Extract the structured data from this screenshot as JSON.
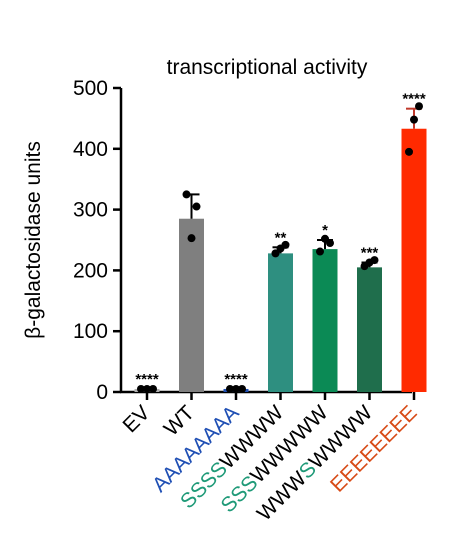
{
  "chart_data": {
    "type": "bar",
    "title": "transcriptional activity",
    "ylabel": "β-galactosidase units",
    "xlabel": "",
    "ylim": [
      0,
      500
    ],
    "yticks": [
      0,
      100,
      200,
      300,
      400,
      500
    ],
    "grid": false,
    "categories": [
      "EV",
      "WT",
      "AAAAAAAA",
      "SSSSWWWW",
      "SSSWWWWW",
      "WWWSWWWW",
      "EEEEEEEE"
    ],
    "values": [
      5,
      285,
      5,
      228,
      235,
      205,
      433
    ],
    "errors": [
      0,
      40,
      0,
      10,
      15,
      8,
      33
    ],
    "points": [
      [
        5,
        5,
        5
      ],
      [
        325,
        305,
        253
      ],
      [
        5,
        5,
        5
      ],
      [
        228,
        242,
        236
      ],
      [
        231,
        245,
        252
      ],
      [
        207,
        217,
        213
      ],
      [
        395,
        470,
        448
      ]
    ],
    "significance": [
      "****",
      "",
      "****",
      "**",
      "*",
      "***",
      "****"
    ],
    "bar_colors": [
      "#b0b0b0",
      "#7f7f7f",
      "#1f4fb4",
      "#2e8f80",
      "#0b8a55",
      "#1f6e4c",
      "#ff2a00"
    ],
    "label_colors": [
      "#000000",
      "#000000",
      "#1f4fb4",
      "#1f9a78",
      "#1f9a78",
      "#000000",
      "#d84b17"
    ],
    "label_segments": [
      [
        {
          "text": "EV",
          "color": "#000000"
        }
      ],
      [
        {
          "text": "WT",
          "color": "#000000"
        }
      ],
      [
        {
          "text": "AAAAAAAA",
          "color": "#1f4fb4"
        }
      ],
      [
        {
          "text": "SSSS",
          "color": "#1f9a78"
        },
        {
          "text": "WWWW",
          "color": "#000000"
        }
      ],
      [
        {
          "text": "SSS",
          "color": "#1f9a78"
        },
        {
          "text": "WWWWW",
          "color": "#000000"
        }
      ],
      [
        {
          "text": "WWW",
          "color": "#000000"
        },
        {
          "text": "S",
          "color": "#1f9a78"
        },
        {
          "text": "WWWW",
          "color": "#000000"
        }
      ],
      [
        {
          "text": "EEEEEEEE",
          "color": "#d84b17"
        }
      ]
    ]
  }
}
